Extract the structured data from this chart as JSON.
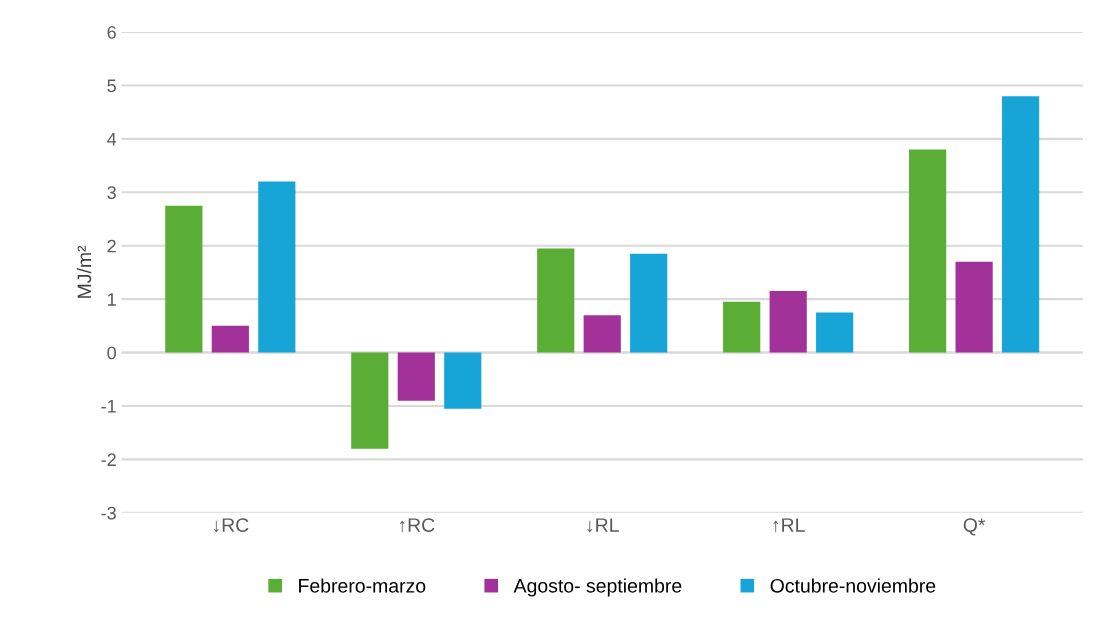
{
  "chart_data": {
    "type": "bar",
    "ylabel": "MJ/m²",
    "categories": [
      "↓RC",
      "↑RC",
      "↓RL",
      "↑RL",
      "Q*"
    ],
    "series": [
      {
        "name": "Febrero-marzo",
        "color": "#5aad35",
        "values": [
          2.75,
          -1.8,
          1.95,
          0.95,
          3.8
        ]
      },
      {
        "name": "Agosto- septiembre",
        "color": "#a3319a",
        "values": [
          0.5,
          -0.9,
          0.7,
          1.15,
          1.7
        ]
      },
      {
        "name": "Octubre-noviembre",
        "color": "#17a5d8",
        "values": [
          3.2,
          -1.05,
          1.85,
          0.75,
          4.8
        ]
      }
    ],
    "ylim": [
      -3,
      6
    ],
    "yticks": [
      -3,
      -2,
      -1,
      0,
      1,
      2,
      3,
      4,
      5,
      6
    ],
    "grid": "y",
    "legend": "bottom"
  }
}
